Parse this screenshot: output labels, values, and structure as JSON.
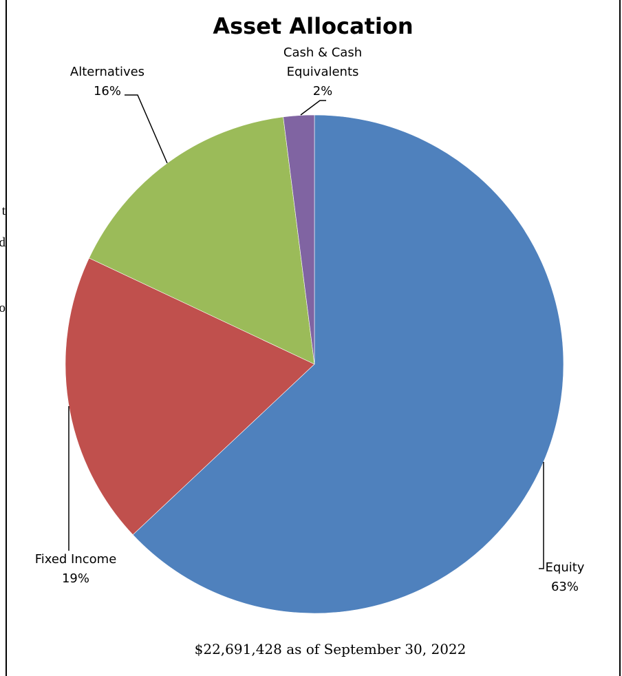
{
  "page_fragments": [
    "t",
    "d",
    "o"
  ],
  "chart_data": {
    "type": "pie",
    "title": "Asset Allocation",
    "caption": "$22,691,428 as of September 30, 2022",
    "slices": [
      {
        "label": "Equity",
        "lines": [
          "Equity",
          "63%"
        ],
        "percent": 63,
        "color": "#4F81BD"
      },
      {
        "label": "Fixed Income",
        "lines": [
          "Fixed Income",
          "19%"
        ],
        "percent": 19,
        "color": "#C0504D"
      },
      {
        "label": "Alternatives",
        "lines": [
          "Alternatives",
          "16%"
        ],
        "percent": 16,
        "color": "#9BBB59"
      },
      {
        "label": "Cash & Cash Equivalents",
        "lines": [
          "Cash & Cash",
          "Equivalents",
          "2%"
        ],
        "percent": 2,
        "color": "#8064A2"
      }
    ]
  }
}
